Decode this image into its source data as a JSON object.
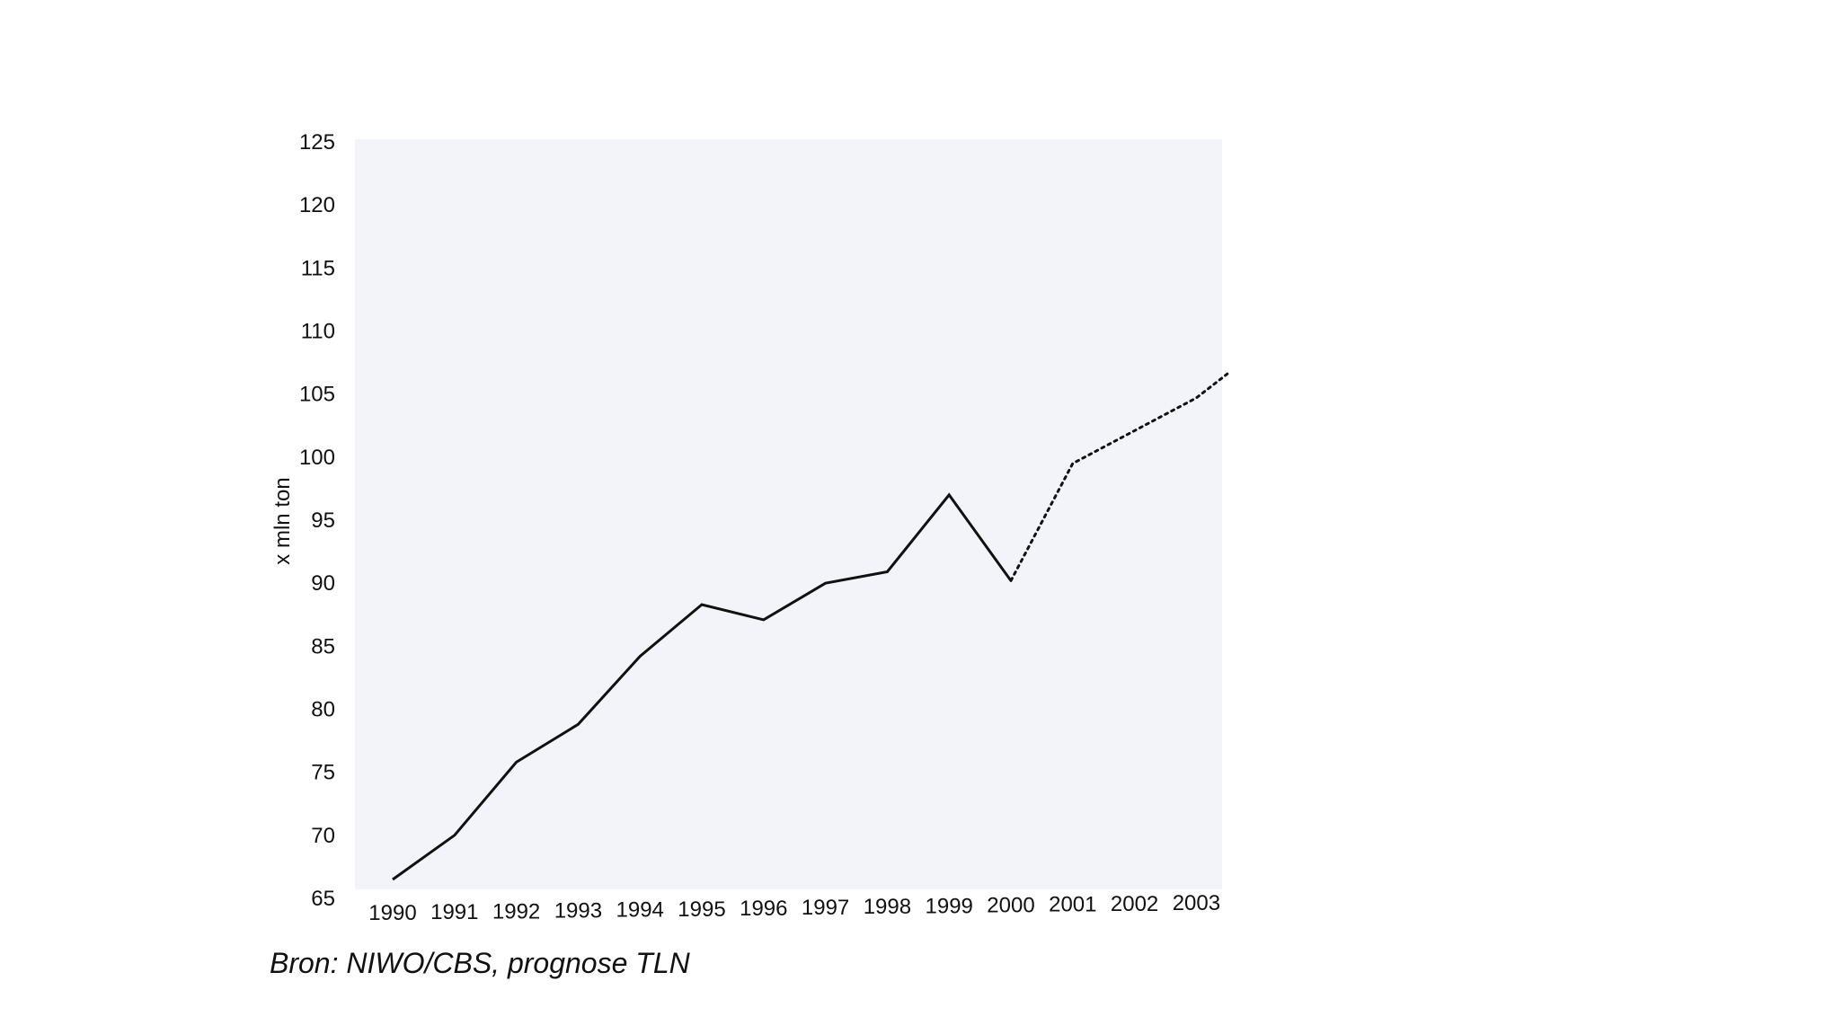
{
  "chart_data": {
    "type": "line",
    "title": "",
    "xlabel": "",
    "ylabel": "x mln ton",
    "x": [
      "1990",
      "1991",
      "1992",
      "1993",
      "1994",
      "1995",
      "1996",
      "1997",
      "1998",
      "1999",
      "2000",
      "2001",
      "2002",
      "2003"
    ],
    "series": [
      {
        "style": "solid",
        "x": [
          "1990",
          "1991",
          "1992",
          "1993",
          "1994",
          "1995",
          "1996",
          "1997",
          "1998",
          "1999",
          "2000"
        ],
        "values": [
          66.5,
          70.0,
          75.8,
          78.8,
          84.2,
          88.3,
          87.1,
          90.0,
          90.9,
          97.0,
          90.2
        ]
      },
      {
        "style": "dotted",
        "x": [
          "2000",
          "2001",
          "2002",
          "2003",
          "2003.5"
        ],
        "values": [
          90.2,
          99.5,
          102.1,
          104.7,
          106.6
        ]
      }
    ],
    "yticks": [
      65,
      70,
      75,
      80,
      85,
      90,
      95,
      100,
      105,
      110,
      115,
      120,
      125
    ],
    "ylim": [
      65,
      125
    ],
    "grid": false,
    "source_note": "Bron: NIWO/CBS, prognose TLN",
    "colors": {
      "line": "#111111",
      "text": "#111111",
      "plot_background": "#f3f4f9"
    }
  }
}
